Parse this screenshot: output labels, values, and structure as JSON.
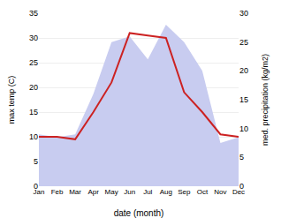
{
  "chart_data": {
    "type": "line",
    "categories": [
      "Jan",
      "Feb",
      "Mar",
      "Apr",
      "May",
      "Jun",
      "Jul",
      "Aug",
      "Sep",
      "Oct",
      "Nov",
      "Dec"
    ],
    "xlabel": "date (month)",
    "ylabel": "max temp (C)",
    "y2label": "med. precipitation (kg/m2)",
    "series": [
      {
        "type": "area",
        "color": "#c8ccf0",
        "axis": "y2",
        "values": [
          9,
          8.5,
          9,
          16,
          25,
          26,
          22,
          28,
          25,
          20,
          7.5,
          8.5
        ]
      },
      {
        "type": "line",
        "color": "#cc2222",
        "values": [
          10,
          10,
          9.5,
          15,
          21,
          31,
          30.5,
          30,
          19,
          15,
          10.5,
          10
        ]
      }
    ],
    "ylim": [
      0,
      35
    ],
    "yticks": [
      0,
      5,
      10,
      15,
      20,
      25,
      30,
      35
    ],
    "y2lim": [
      0,
      30
    ],
    "y2ticks": [
      0,
      5,
      10,
      15,
      20,
      25,
      30
    ],
    "grid": true
  }
}
